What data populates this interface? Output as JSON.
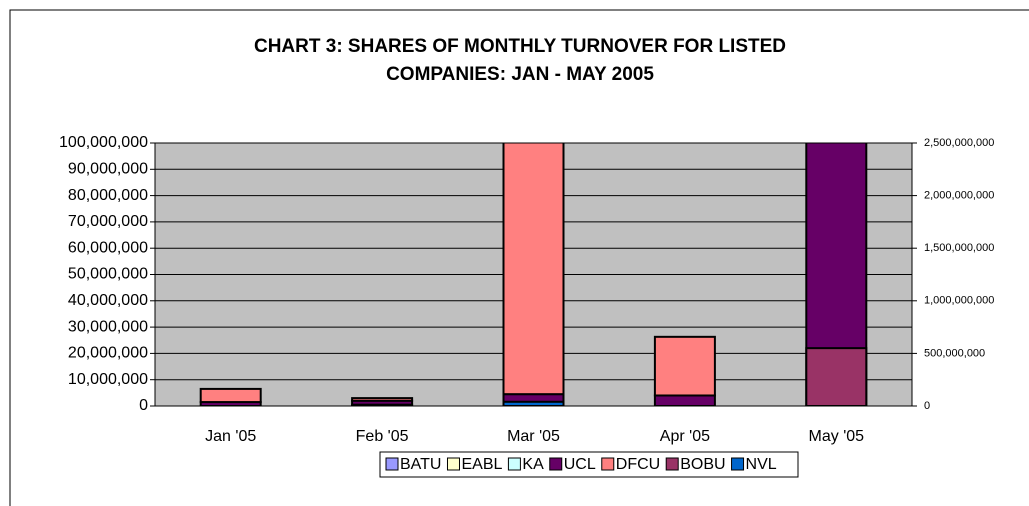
{
  "chart_data": {
    "type": "bar",
    "stacked": true,
    "title": "CHART 3: SHARES OF MONTHLY TURNOVER FOR LISTED COMPANIES: JAN - MAY 2005",
    "categories": [
      "Jan '05",
      "Feb '05",
      "Mar '05",
      "Apr '05",
      "May '05"
    ],
    "series": [
      {
        "name": "BATU",
        "color": "#9999ff",
        "values": [
          null,
          null,
          null,
          null,
          null
        ]
      },
      {
        "name": "EABL",
        "color": "#ffffcc",
        "values": [
          null,
          500000,
          null,
          null,
          null
        ]
      },
      {
        "name": "KA",
        "color": "#ccffff",
        "values": [
          null,
          null,
          null,
          null,
          null
        ]
      },
      {
        "name": "UCL",
        "color": "#660066",
        "values": [
          1500000,
          1500000,
          4500000,
          4000000,
          130000000
        ]
      },
      {
        "name": "DFCU",
        "color": "#ff8080",
        "values": [
          5000000,
          1000000,
          115500000,
          22300000,
          null
        ]
      },
      {
        "name": "BOBU",
        "color": "#993366",
        "axis": "y2",
        "values": [
          null,
          null,
          null,
          null,
          550000000
        ]
      },
      {
        "name": "NVL",
        "color": "#0066cc",
        "axis": "y2",
        "values": [
          null,
          null,
          40000000,
          null,
          null
        ]
      }
    ],
    "ylim": [
      0,
      100000000
    ],
    "yticks": [
      {
        "value": 0,
        "label": "0"
      },
      {
        "value": 10000000,
        "label": "10,000,000"
      },
      {
        "value": 20000000,
        "label": "20,000,000"
      },
      {
        "value": 30000000,
        "label": "30,000,000"
      },
      {
        "value": 40000000,
        "label": "40,000,000"
      },
      {
        "value": 50000000,
        "label": "50,000,000"
      },
      {
        "value": 60000000,
        "label": "60,000,000"
      },
      {
        "value": 70000000,
        "label": "70,000,000"
      },
      {
        "value": 80000000,
        "label": "80,000,000"
      },
      {
        "value": 90000000,
        "label": "90,000,000"
      },
      {
        "value": 100000000,
        "label": "100,000,000"
      }
    ],
    "y2lim": [
      0,
      2500000000
    ],
    "y2ticks": [
      0,
      {
        "value": 500000000,
        "label": "500,000,000"
      },
      {
        "value": 1000000000,
        "label": "1,000,000,000"
      },
      {
        "value": 1500000000,
        "label": "1,500,000,000"
      },
      {
        "value": 2000000000,
        "label": "2,000,000,000"
      },
      {
        "value": 2500000000,
        "label": "2,500,000,000"
      }
    ],
    "grid": true,
    "legend": "bottom"
  }
}
